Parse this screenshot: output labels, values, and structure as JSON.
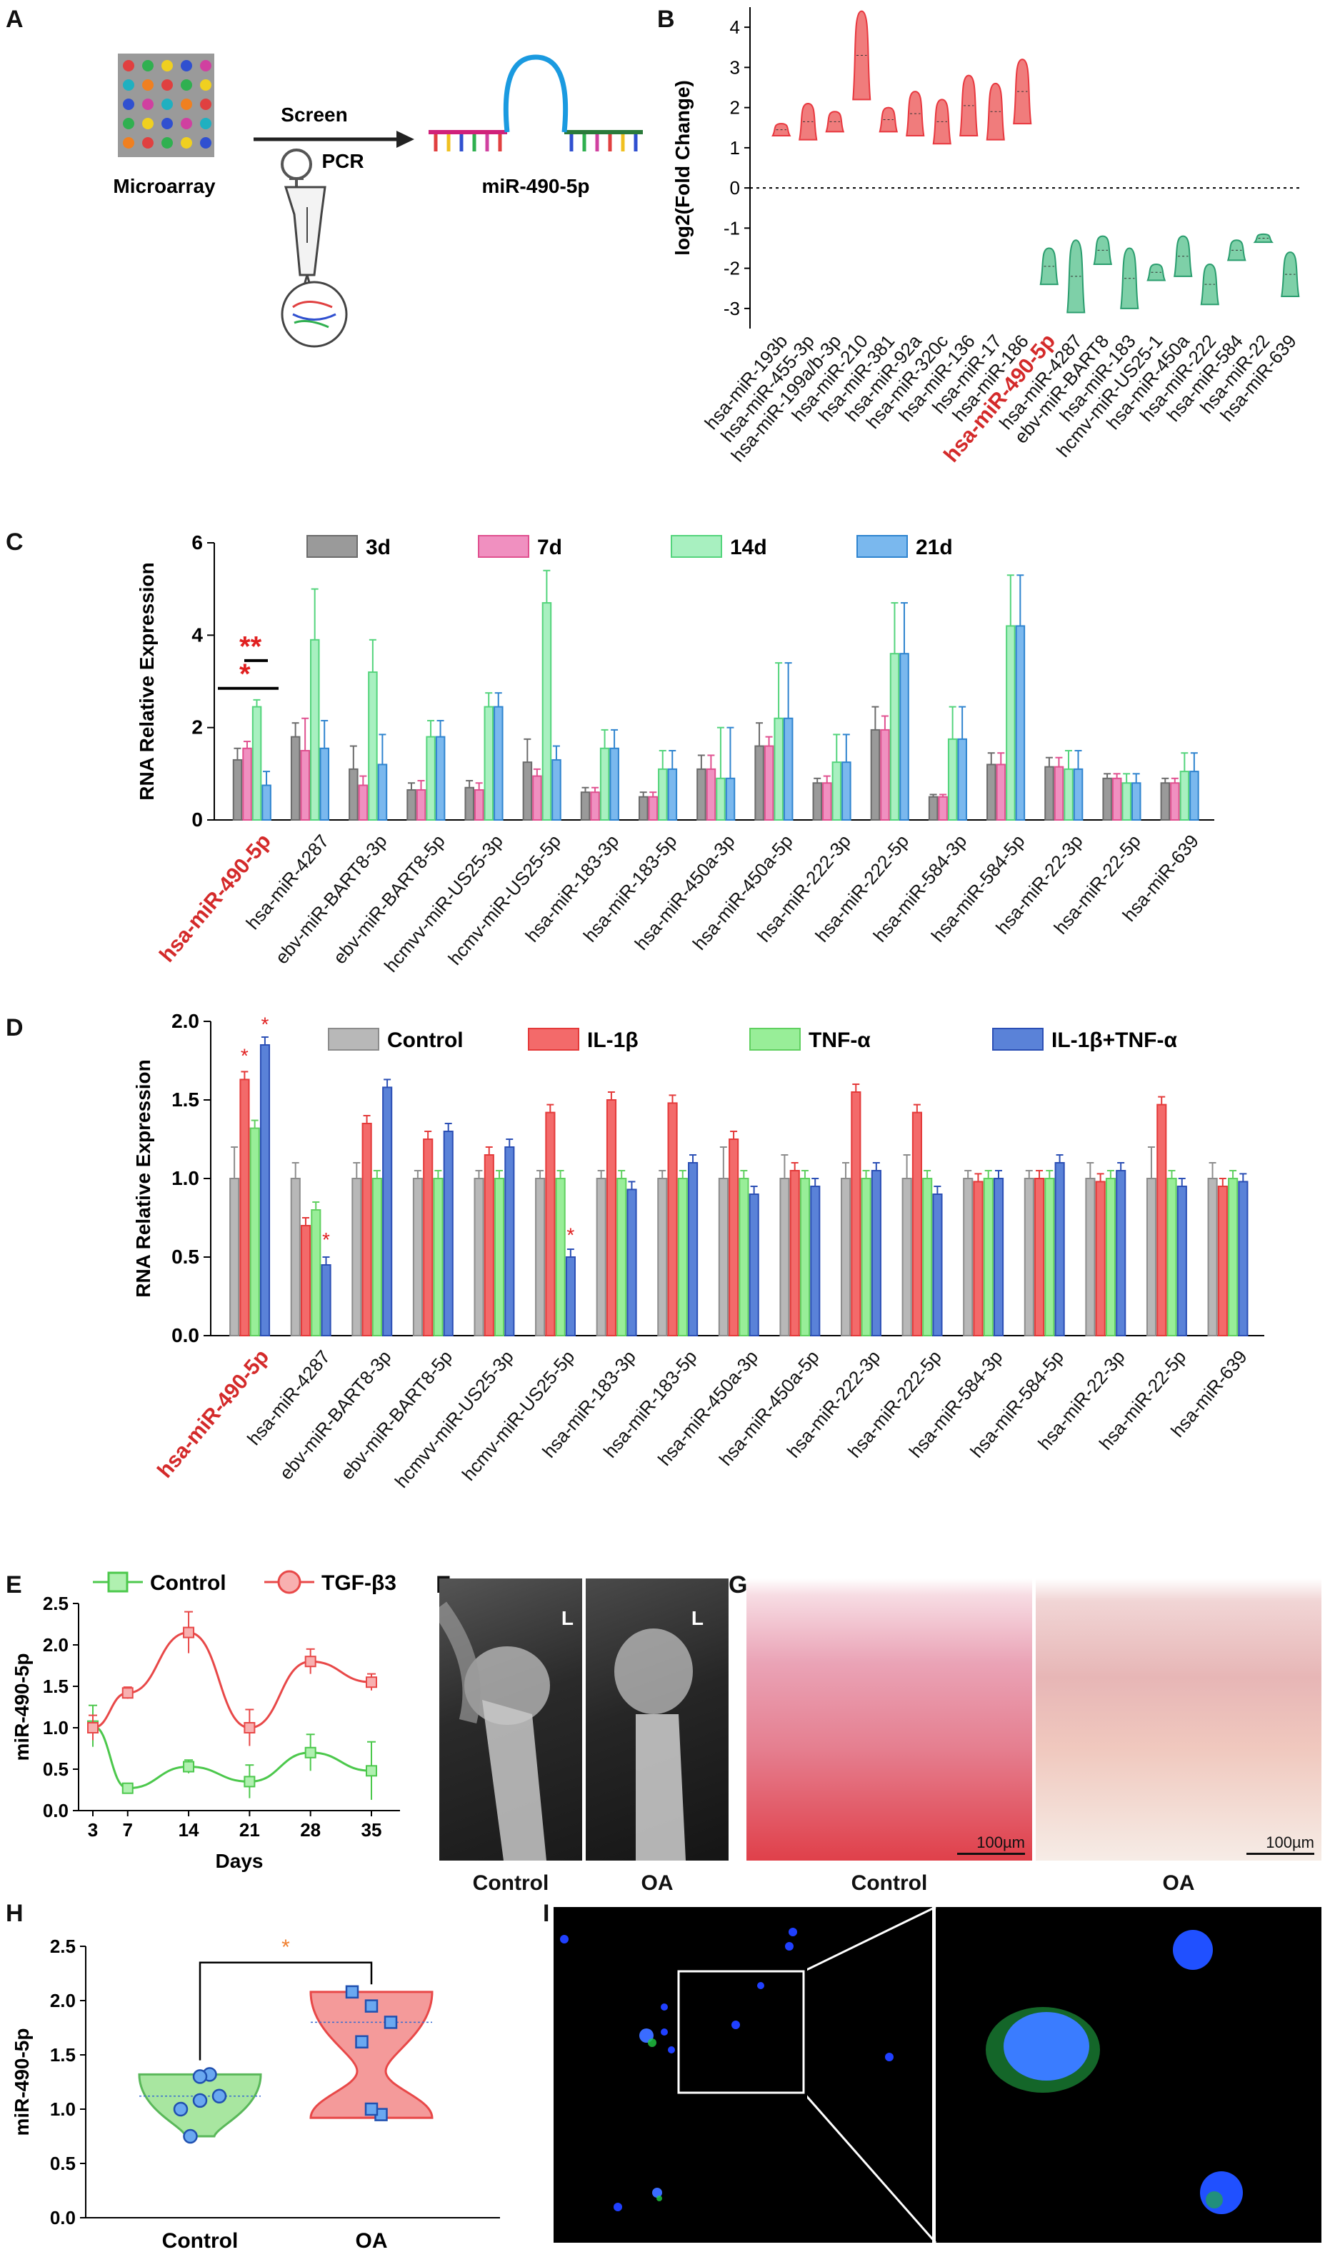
{
  "panel_labels": {
    "A": "A",
    "B": "B",
    "C": "C",
    "D": "D",
    "E": "E",
    "F": "F",
    "G": "G",
    "H": "H",
    "I": "I"
  },
  "panel_a": {
    "microarray": "Microarray",
    "screen": "Screen",
    "pcr": "PCR",
    "mirna": "miR-490-5p"
  },
  "colors": {
    "up": "#e8383f",
    "down": "#2a9d6e",
    "highlight": "#d42a2a"
  },
  "chart_data": [
    {
      "panel": "B",
      "type": "violin",
      "ylabel": "log2(Fold Change)",
      "ylim": [
        -3.5,
        4.5
      ],
      "yticks": [
        -3,
        -2,
        -1,
        0,
        1,
        2,
        3,
        4
      ],
      "categories": [
        "hsa-miR-193b",
        "hsa-miR-455-3p",
        "hsa-miR-199a/b-3p",
        "hsa-miR-210",
        "hsa-miR-381",
        "hsa-miR-92a",
        "hsa-miR-320c",
        "hsa-miR-136",
        "hsa-miR-17",
        "hsa-miR-186",
        "hsa-miR-490-5p",
        "hsa-miR-4287",
        "ebv-miR-BART8",
        "hsa-miR-183",
        "hcmv-miR-US25-1",
        "hsa-miR-450a",
        "hsa-miR-222",
        "hsa-miR-584",
        "hsa-miR-22",
        "hsa-miR-639"
      ],
      "highlight": "hsa-miR-490-5p",
      "ranges": [
        [
          1.3,
          1.6
        ],
        [
          1.2,
          2.1
        ],
        [
          1.4,
          1.9
        ],
        [
          2.2,
          4.4
        ],
        [
          1.4,
          2.0
        ],
        [
          1.3,
          2.4
        ],
        [
          1.1,
          2.2
        ],
        [
          1.3,
          2.8
        ],
        [
          1.2,
          2.6
        ],
        [
          1.6,
          3.2
        ],
        [
          -2.4,
          -1.5
        ],
        [
          -3.1,
          -1.3
        ],
        [
          -1.9,
          -1.2
        ],
        [
          -3.0,
          -1.5
        ],
        [
          -2.3,
          -1.9
        ],
        [
          -2.2,
          -1.2
        ],
        [
          -2.9,
          -1.9
        ],
        [
          -1.8,
          -1.3
        ],
        [
          -1.35,
          -1.15
        ],
        [
          -2.7,
          -1.6
        ]
      ],
      "group": [
        "up",
        "up",
        "up",
        "up",
        "up",
        "up",
        "up",
        "up",
        "up",
        "up",
        "down",
        "down",
        "down",
        "down",
        "down",
        "down",
        "down",
        "down",
        "down",
        "down"
      ]
    },
    {
      "panel": "C",
      "type": "bar",
      "ylabel": "RNA Relative Expression",
      "ylim": [
        0,
        6
      ],
      "yticks": [
        0,
        2,
        4,
        6
      ],
      "legend": [
        "3d",
        "7d",
        "14d",
        "21d"
      ],
      "series_colors": [
        "#6b6b6b",
        "#e0508f",
        "#54d47c",
        "#2f84cf"
      ],
      "categories": [
        "hsa-miR-490-5p",
        "hsa-miR-4287",
        "ebv-miR-BART8-3p",
        "ebv-miR-BART8-5p",
        "hcmvv-miR-US25-3p",
        "hcmv-miR-US25-5p",
        "hsa-miR-183-3p",
        "hsa-miR-183-5p",
        "hsa-miR-450a-3p",
        "hsa-miR-450a-5p",
        "hsa-miR-222-3p",
        "hsa-miR-222-5p",
        "hsa-miR-584-3p",
        "hsa-miR-584-5p",
        "hsa-miR-22-3p",
        "hsa-miR-22-5p",
        "hsa-miR-639"
      ],
      "series": [
        {
          "name": "3d",
          "values": [
            1.3,
            1.8,
            1.1,
            0.65,
            0.7,
            1.25,
            0.6,
            0.5,
            1.1,
            1.6,
            0.8,
            1.95,
            0.5,
            1.2,
            1.15,
            0.9,
            0.8
          ],
          "err": [
            0.25,
            0.3,
            0.5,
            0.15,
            0.15,
            0.5,
            0.1,
            0.1,
            0.3,
            0.5,
            0.1,
            0.5,
            0.05,
            0.25,
            0.2,
            0.1,
            0.1
          ]
        },
        {
          "name": "7d",
          "values": [
            1.55,
            1.5,
            0.75,
            0.65,
            0.65,
            0.95,
            0.6,
            0.5,
            1.1,
            1.6,
            0.8,
            1.95,
            0.5,
            1.2,
            1.15,
            0.9,
            0.8
          ],
          "err": [
            0.15,
            0.7,
            0.2,
            0.2,
            0.15,
            0.15,
            0.1,
            0.1,
            0.3,
            0.2,
            0.15,
            0.3,
            0.05,
            0.25,
            0.2,
            0.1,
            0.1
          ]
        },
        {
          "name": "14d",
          "values": [
            2.45,
            3.9,
            3.2,
            1.8,
            2.45,
            4.7,
            1.55,
            1.1,
            0.9,
            2.2,
            1.25,
            3.6,
            1.75,
            4.2,
            1.1,
            0.8,
            1.05
          ],
          "err": [
            0.15,
            1.1,
            0.7,
            0.35,
            0.3,
            0.7,
            0.4,
            0.4,
            1.1,
            1.2,
            0.6,
            1.1,
            0.7,
            1.1,
            0.4,
            0.2,
            0.4
          ]
        },
        {
          "name": "21d",
          "values": [
            0.75,
            1.55,
            1.2,
            1.8,
            2.45,
            1.3,
            1.55,
            1.1,
            0.9,
            2.2,
            1.25,
            3.6,
            1.75,
            4.2,
            1.1,
            0.8,
            1.05
          ],
          "err": [
            0.3,
            0.6,
            0.65,
            0.35,
            0.3,
            0.3,
            0.4,
            0.4,
            1.1,
            1.2,
            0.6,
            1.1,
            0.7,
            1.1,
            0.4,
            0.2,
            0.4
          ]
        }
      ],
      "annotations": [
        "*",
        "**"
      ]
    },
    {
      "panel": "D",
      "type": "bar",
      "ylabel": "RNA Relative Expression",
      "ylim": [
        0,
        2.0
      ],
      "yticks": [
        0,
        0.5,
        1.0,
        1.5,
        2.0
      ],
      "legend": [
        "Control",
        "IL-1β",
        "TNF-α",
        "IL-1β+TNF-α"
      ],
      "series_colors": [
        "#8c8c8c",
        "#e43a3a",
        "#60d060",
        "#2b4fb5"
      ],
      "categories": [
        "hsa-miR-490-5p",
        "hsa-miR-4287",
        "ebv-miR-BART8-3p",
        "ebv-miR-BART8-5p",
        "hcmvv-miR-US25-3p",
        "hcmv-miR-US25-5p",
        "hsa-miR-183-3p",
        "hsa-miR-183-5p",
        "hsa-miR-450a-3p",
        "hsa-miR-450a-5p",
        "hsa-miR-222-3p",
        "hsa-miR-222-5p",
        "hsa-miR-584-3p",
        "hsa-miR-584-5p",
        "hsa-miR-22-3p",
        "hsa-miR-22-5p",
        "hsa-miR-639"
      ],
      "series": [
        {
          "name": "Control",
          "values": [
            1.0,
            1.0,
            1.0,
            1.0,
            1.0,
            1.0,
            1.0,
            1.0,
            1.0,
            1.0,
            1.0,
            1.0,
            1.0,
            1.0,
            1.0,
            1.0,
            1.0
          ],
          "err": [
            0.2,
            0.1,
            0.1,
            0.05,
            0.05,
            0.05,
            0.05,
            0.05,
            0.2,
            0.15,
            0.1,
            0.15,
            0.05,
            0.05,
            0.1,
            0.2,
            0.1
          ]
        },
        {
          "name": "IL-1β",
          "values": [
            1.63,
            0.7,
            1.35,
            1.25,
            1.15,
            1.42,
            1.5,
            1.48,
            1.25,
            1.05,
            1.55,
            1.42,
            0.98,
            1.0,
            0.98,
            1.47,
            0.95
          ]
        },
        {
          "name": "TNF-α",
          "values": [
            1.32,
            0.8,
            1.0,
            1.0,
            1.0,
            1.0,
            1.0,
            1.0,
            1.0,
            1.0,
            1.0,
            1.0,
            1.0,
            1.0,
            1.0,
            1.0,
            1.0
          ]
        },
        {
          "name": "IL-1β+TNF-α",
          "values": [
            1.85,
            0.45,
            1.58,
            1.3,
            1.2,
            0.5,
            0.93,
            1.1,
            0.9,
            0.95,
            1.05,
            0.9,
            1.0,
            1.1,
            1.05,
            0.95,
            0.98
          ]
        }
      ],
      "annotations": [
        "*",
        "*",
        "*",
        "*"
      ]
    },
    {
      "panel": "E",
      "type": "line",
      "xlabel": "Days",
      "ylabel": "miR-490-5p",
      "ylim": [
        0,
        2.5
      ],
      "yticks": [
        0.0,
        0.5,
        1.0,
        1.5,
        2.0,
        2.5
      ],
      "x": [
        3,
        7,
        14,
        21,
        28,
        35
      ],
      "series": [
        {
          "name": "Control",
          "values": [
            1.02,
            0.27,
            0.53,
            0.35,
            0.7,
            0.48
          ],
          "err": [
            0.25,
            0.03,
            0.08,
            0.2,
            0.22,
            0.35
          ]
        },
        {
          "name": "TGF-β3",
          "values": [
            1.0,
            1.42,
            2.15,
            1.0,
            1.8,
            1.55
          ],
          "err": [
            0.15,
            0.07,
            0.25,
            0.22,
            0.15,
            0.1
          ]
        }
      ]
    },
    {
      "panel": "H",
      "type": "violin",
      "ylabel": "miR-490-5p",
      "ylim": [
        0,
        2.5
      ],
      "yticks": [
        0.0,
        0.5,
        1.0,
        1.5,
        2.0,
        2.5
      ],
      "categories": [
        "Control",
        "OA"
      ],
      "points": [
        [
          1.0,
          1.08,
          1.12,
          0.75,
          1.32,
          1.3
        ],
        [
          2.08,
          1.95,
          1.8,
          1.62,
          0.95,
          1.0
        ]
      ],
      "annotations": [
        "*"
      ]
    }
  ],
  "panel_f": {
    "labels": [
      "Control",
      "OA"
    ],
    "marker": "L"
  },
  "panel_g": {
    "labels": [
      "Control",
      "OA"
    ],
    "scale": "100µm"
  }
}
